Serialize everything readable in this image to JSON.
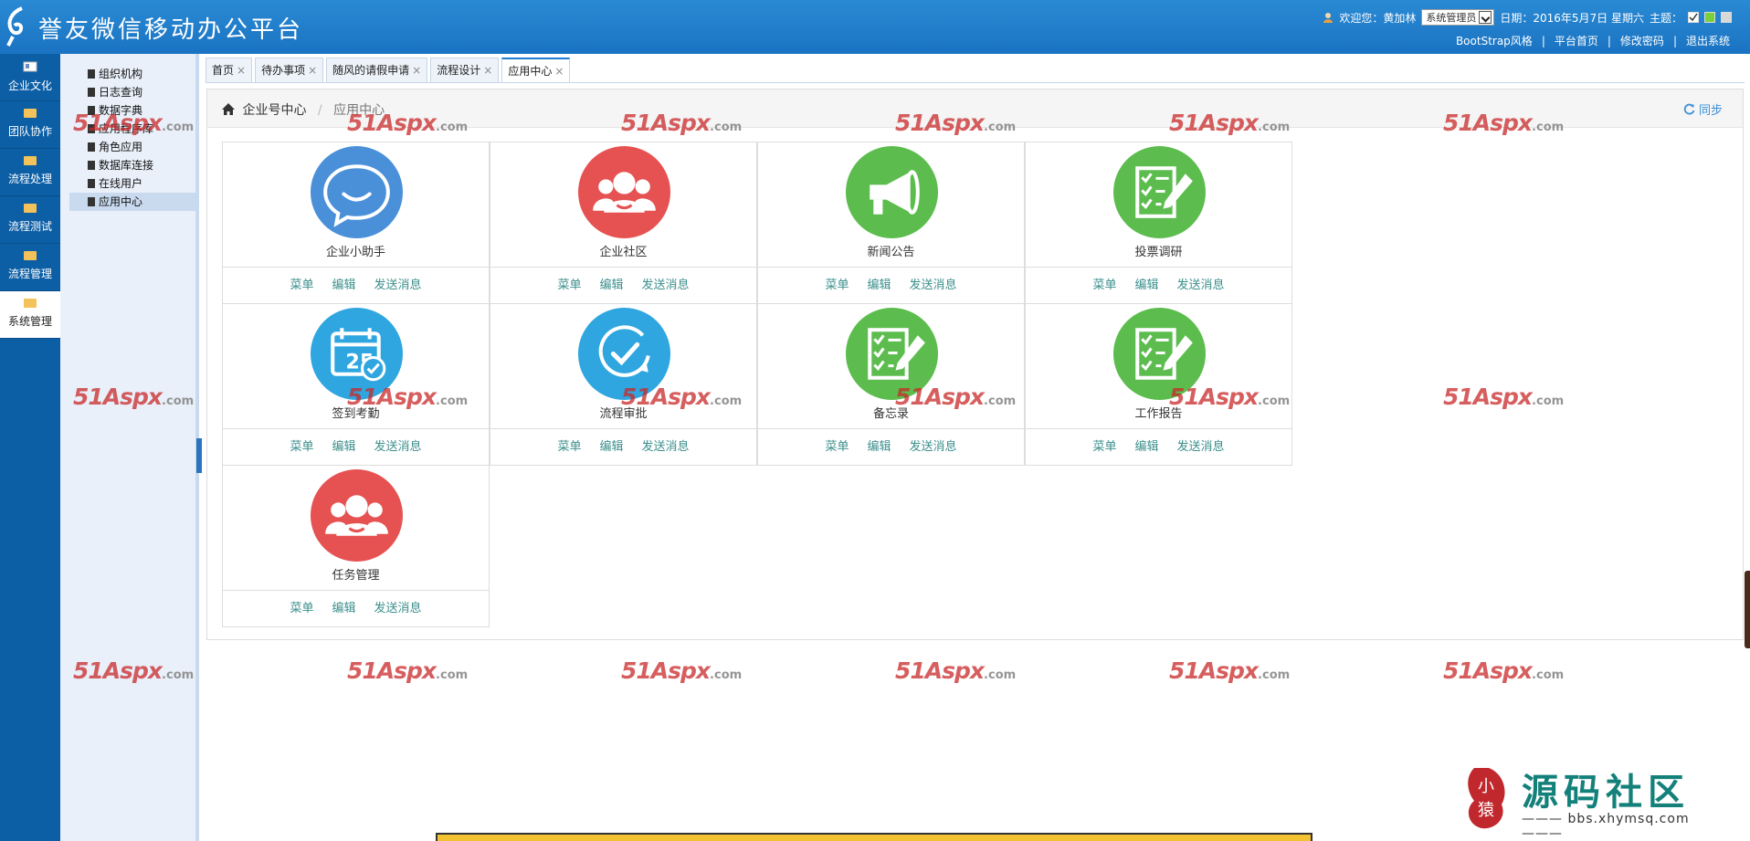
{
  "header": {
    "title": "誉友微信移动办公平台",
    "welcome": "欢迎您：黄加林",
    "role": "系统管理员",
    "date": "日期：2016年5月7日 星期六",
    "theme_label": "主题：",
    "theme_colors": [
      "#ffffff",
      "#7ad03a",
      "#d8d8d8"
    ],
    "links": [
      "BootStrap风格",
      "平台首页",
      "修改密码",
      "退出系统"
    ]
  },
  "leftnav": {
    "items": [
      {
        "label": "企业文化"
      },
      {
        "label": "团队协作"
      },
      {
        "label": "流程处理"
      },
      {
        "label": "流程测试"
      },
      {
        "label": "流程管理"
      },
      {
        "label": "系统管理"
      }
    ]
  },
  "tree": {
    "items": [
      "组织机构",
      "日志查询",
      "数据字典",
      "应用程序库",
      "角色应用",
      "数据库连接",
      "在线用户",
      "应用中心"
    ]
  },
  "tabs": [
    "首页",
    "待办事项",
    "随风的请假申请",
    "流程设计",
    "应用中心"
  ],
  "breadcrumb": {
    "home": "企业号中心",
    "current": "应用中心",
    "sync": "同步"
  },
  "apps": [
    {
      "name": "企业小助手",
      "color": "#4a90d9",
      "icon": "chat-icon"
    },
    {
      "name": "企业社区",
      "color": "#e65252",
      "icon": "group-icon"
    },
    {
      "name": "新闻公告",
      "color": "#5cbd4e",
      "icon": "megaphone-icon"
    },
    {
      "name": "投票调研",
      "color": "#5cbd4e",
      "icon": "checklist-icon"
    },
    {
      "name": "签到考勤",
      "color": "#2fa6e0",
      "icon": "calendar-icon"
    },
    {
      "name": "流程审批",
      "color": "#2fa6e0",
      "icon": "check-circle-icon"
    },
    {
      "name": "备忘录",
      "color": "#5cbd4e",
      "icon": "checklist-icon"
    },
    {
      "name": "工作报告",
      "color": "#5cbd4e",
      "icon": "checklist-icon"
    },
    {
      "name": "任务管理",
      "color": "#e65252",
      "icon": "group-icon"
    }
  ],
  "app_actions": [
    "菜单",
    "编辑",
    "发送消息"
  ],
  "watermark": {
    "main": "51Aspx",
    "suffix": ".com"
  },
  "community": {
    "name": "源码社区",
    "url": "bbs.xhymsq.com",
    "seal": "小猿"
  }
}
